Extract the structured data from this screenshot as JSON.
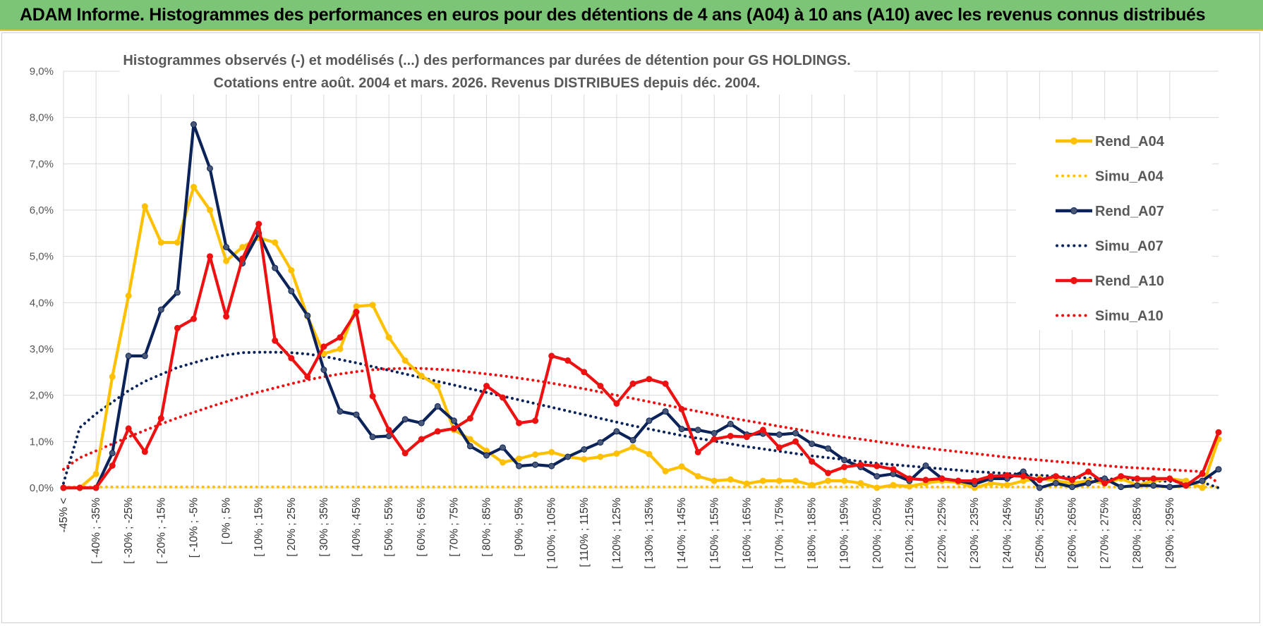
{
  "header": {
    "title": "ADAM Informe. Histogrammes des performances en euros pour des détentions de 4 ans (A04) à 10 ans (A10) avec les revenus connus distribués"
  },
  "chart_data": {
    "type": "line",
    "title_line1": "Histogrammes observés (-) et modélisés (...) des performances par durées de détention pour GS HOLDINGS.",
    "title_line2": "Cotations entre août. 2004 et mars. 2026. Revenus DISTRIBUES depuis déc. 2004.",
    "ylim": [
      0,
      9
    ],
    "yticks": [
      "0,0%",
      "1,0%",
      "2,0%",
      "3,0%",
      "4,0%",
      "5,0%",
      "6,0%",
      "7,0%",
      "8,0%",
      "9,0%"
    ],
    "x_labels": [
      "-45% <",
      "[ -40% ; -35%",
      "[ -30% ; -25%",
      "[ -20% ; -15%",
      "[ -10% ; -5%",
      "[ 0% ; 5%",
      "[ 10% ; 15%",
      "[ 20% ; 25%",
      "[ 30% ; 35%",
      "[ 40% ; 45%",
      "[ 50% ; 55%",
      "[ 60% ; 65%",
      "[ 70% ; 75%",
      "[ 80% ; 85%",
      "[ 90% ; 95%",
      "[ 100% ; 105%",
      "[ 110% ; 115%",
      "[ 120% ; 125%",
      "[ 130% ; 135%",
      "[ 140% ; 145%",
      "[ 150% ; 155%",
      "[ 160% ; 165%",
      "[ 170% ; 175%",
      "[ 180% ; 185%",
      "[ 190% ; 195%",
      "[ 200% ; 205%",
      "[ 210% ; 215%",
      "[ 220% ; 225%",
      "[ 230% ; 235%",
      "[ 240% ; 245%",
      "[ 250% ; 255%",
      "[ 260% ; 265%",
      "[ 270% ; 275%",
      "[ 280% ; 285%",
      "[ 290% ; 295%"
    ],
    "legend_position": "right",
    "series": [
      {
        "name": "Rend_A04",
        "style": "solid",
        "color": "#ffc000",
        "values": [
          0,
          0,
          0.3,
          2.4,
          4.15,
          6.08,
          5.3,
          5.3,
          6.5,
          6.0,
          4.9,
          5.2,
          5.4,
          5.3,
          4.7,
          3.7,
          2.9,
          3.0,
          3.92,
          3.95,
          3.25,
          2.75,
          2.42,
          2.2,
          1.25,
          1.05,
          0.8,
          0.55,
          0.63,
          0.72,
          0.77,
          0.67,
          0.62,
          0.67,
          0.74,
          0.88,
          0.73,
          0.36,
          0.46,
          0.25,
          0.15,
          0.18,
          0.09,
          0.15,
          0.15,
          0.15,
          0.06,
          0.15,
          0.15,
          0.1,
          0.0,
          0.06,
          0.03,
          0.1,
          0.15,
          0.12,
          0.0,
          0.1,
          0.06,
          0.15,
          0.2,
          0.15,
          0.1,
          0.15,
          0.1,
          0.2,
          0.06,
          0.15,
          0.2,
          0.15,
          0.0,
          1.05
        ]
      },
      {
        "name": "Simu_A04",
        "style": "dotted",
        "color": "#ffc000",
        "values": [
          0.02,
          0.02,
          0.02,
          0.02,
          0.02,
          0.02,
          0.02,
          0.02,
          0.02,
          0.02,
          0.02,
          0.02,
          0.02,
          0.02,
          0.02,
          0.02,
          0.02,
          0.02,
          0.02,
          0.02,
          0.02,
          0.02,
          0.02,
          0.02,
          0.02,
          0.02,
          0.02,
          0.02,
          0.02,
          0.02,
          0.02,
          0.02,
          0.02,
          0.02,
          0.02,
          0.02,
          0.02,
          0.02,
          0.02,
          0.02,
          0.02,
          0.02,
          0.02,
          0.02,
          0.02,
          0.02,
          0.02,
          0.02,
          0.02,
          0.02,
          0.02,
          0.02,
          0.02,
          0.02,
          0.02,
          0.02,
          0.02,
          0.02,
          0.02,
          0.02,
          0.02,
          0.02,
          0.02,
          0.02,
          0.02,
          0.02,
          0.02,
          0.02,
          0.02,
          0.02,
          0.02,
          0.02
        ]
      },
      {
        "name": "Rend_A07",
        "style": "solid",
        "color": "#0b2359",
        "values": [
          0,
          0,
          0,
          0.75,
          2.85,
          2.85,
          3.85,
          4.22,
          7.85,
          6.9,
          5.2,
          4.85,
          5.5,
          4.75,
          4.25,
          3.72,
          2.55,
          1.65,
          1.58,
          1.1,
          1.12,
          1.48,
          1.4,
          1.76,
          1.45,
          0.9,
          0.7,
          0.87,
          0.47,
          0.5,
          0.47,
          0.67,
          0.83,
          0.98,
          1.22,
          1.03,
          1.45,
          1.65,
          1.27,
          1.25,
          1.18,
          1.38,
          1.15,
          1.17,
          1.15,
          1.18,
          0.95,
          0.85,
          0.6,
          0.45,
          0.25,
          0.3,
          0.15,
          0.48,
          0.2,
          0.15,
          0.08,
          0.2,
          0.2,
          0.35,
          0.0,
          0.1,
          0.02,
          0.1,
          0.2,
          0.02,
          0.05,
          0.05,
          0.02,
          0.05,
          0.15,
          0.4
        ]
      },
      {
        "name": "Simu_A07",
        "style": "dotted",
        "color": "#0b2359",
        "values": [
          0.1,
          1.3,
          1.6,
          1.85,
          2.1,
          2.3,
          2.45,
          2.6,
          2.7,
          2.8,
          2.87,
          2.92,
          2.93,
          2.93,
          2.92,
          2.89,
          2.84,
          2.77,
          2.7,
          2.62,
          2.54,
          2.46,
          2.38,
          2.3,
          2.22,
          2.14,
          2.06,
          1.98,
          1.9,
          1.82,
          1.74,
          1.66,
          1.58,
          1.5,
          1.42,
          1.34,
          1.27,
          1.2,
          1.13,
          1.07,
          1.01,
          0.95,
          0.89,
          0.84,
          0.79,
          0.74,
          0.69,
          0.65,
          0.61,
          0.57,
          0.53,
          0.5,
          0.47,
          0.44,
          0.41,
          0.38,
          0.35,
          0.33,
          0.31,
          0.29,
          0.27,
          0.25,
          0.23,
          0.21,
          0.2,
          0.18,
          0.17,
          0.15,
          0.14,
          0.13,
          0.12,
          0.0
        ]
      },
      {
        "name": "Rend_A10",
        "style": "solid",
        "color": "#ee1111",
        "values": [
          0,
          0,
          0,
          0.48,
          1.28,
          0.78,
          1.5,
          3.45,
          3.65,
          5.0,
          3.7,
          4.95,
          5.7,
          3.18,
          2.8,
          2.4,
          3.05,
          3.25,
          3.8,
          1.98,
          1.25,
          0.75,
          1.05,
          1.22,
          1.28,
          1.5,
          2.2,
          1.95,
          1.4,
          1.45,
          2.85,
          2.75,
          2.5,
          2.2,
          1.82,
          2.25,
          2.35,
          2.25,
          1.7,
          0.77,
          1.05,
          1.12,
          1.1,
          1.25,
          0.87,
          1.0,
          0.57,
          0.32,
          0.45,
          0.5,
          0.47,
          0.4,
          0.2,
          0.17,
          0.2,
          0.15,
          0.15,
          0.25,
          0.27,
          0.25,
          0.17,
          0.25,
          0.17,
          0.35,
          0.1,
          0.25,
          0.2,
          0.2,
          0.2,
          0.05,
          0.3,
          1.2
        ]
      },
      {
        "name": "Simu_A10",
        "style": "dotted",
        "color": "#ee1111",
        "values": [
          0.4,
          0.65,
          0.8,
          0.95,
          1.1,
          1.24,
          1.38,
          1.51,
          1.63,
          1.75,
          1.86,
          1.97,
          2.07,
          2.16,
          2.25,
          2.33,
          2.4,
          2.46,
          2.51,
          2.55,
          2.57,
          2.58,
          2.58,
          2.56,
          2.54,
          2.5,
          2.46,
          2.42,
          2.37,
          2.32,
          2.26,
          2.2,
          2.14,
          2.07,
          2.0,
          1.93,
          1.86,
          1.79,
          1.72,
          1.65,
          1.58,
          1.51,
          1.45,
          1.39,
          1.33,
          1.27,
          1.21,
          1.15,
          1.1,
          1.05,
          1.0,
          0.95,
          0.9,
          0.86,
          0.82,
          0.78,
          0.74,
          0.7,
          0.66,
          0.63,
          0.6,
          0.57,
          0.54,
          0.51,
          0.48,
          0.45,
          0.43,
          0.41,
          0.39,
          0.37,
          0.35,
          0.1
        ]
      }
    ]
  }
}
